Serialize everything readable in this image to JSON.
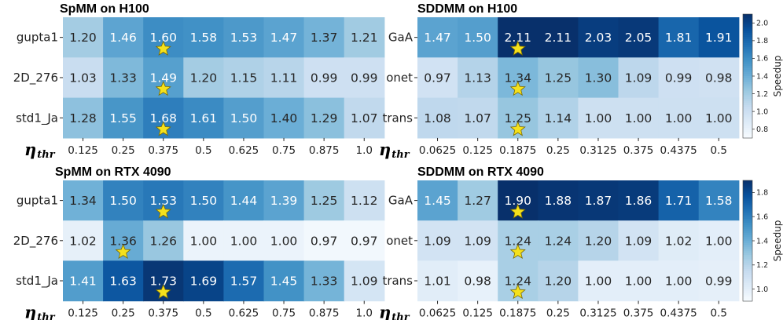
{
  "colors": {
    "low": "#f7fbff",
    "high": "#08306b",
    "star_fill": "#f5e11c",
    "star_stroke": "#7a6a00"
  },
  "chart_data": [
    {
      "type": "heatmap",
      "title": "SpMM on H100",
      "xlabel_main": "η",
      "xlabel_sub": "thr",
      "rows": [
        "gupta1",
        "2D_276",
        "std1_Ja"
      ],
      "cols": [
        "0.125",
        "0.25",
        "0.375",
        "0.5",
        "0.625",
        "0.75",
        "0.875",
        "1.0"
      ],
      "values": [
        [
          1.2,
          1.46,
          1.6,
          1.58,
          1.53,
          1.47,
          1.37,
          1.21
        ],
        [
          1.03,
          1.33,
          1.49,
          1.2,
          1.15,
          1.11,
          0.99,
          0.99
        ],
        [
          1.28,
          1.55,
          1.68,
          1.61,
          1.5,
          1.4,
          1.29,
          1.07
        ]
      ],
      "stars": [
        [
          0,
          2
        ],
        [
          1,
          2
        ],
        [
          2,
          2
        ]
      ],
      "vmin": 0.7,
      "vmax": 2.1,
      "colorbar": null
    },
    {
      "type": "heatmap",
      "title": "SDDMM on H100",
      "xlabel_main": "η",
      "xlabel_sub": "thr",
      "rows": [
        "GaA",
        "onet",
        "trans"
      ],
      "cols": [
        "0.0625",
        "0.125",
        "0.1875",
        "0.25",
        "0.3125",
        "0.375",
        "0.4375",
        "0.5"
      ],
      "values": [
        [
          1.47,
          1.5,
          2.11,
          2.11,
          2.03,
          2.05,
          1.81,
          1.91
        ],
        [
          0.97,
          1.13,
          1.34,
          1.25,
          1.3,
          1.09,
          0.99,
          0.98
        ],
        [
          1.08,
          1.07,
          1.25,
          1.14,
          1.0,
          1.0,
          1.0,
          1.0
        ]
      ],
      "stars": [
        [
          0,
          2
        ],
        [
          1,
          2
        ],
        [
          2,
          2
        ]
      ],
      "vmin": 0.7,
      "vmax": 2.1,
      "colorbar": {
        "label": "Speedup",
        "ticks": [
          "0.8",
          "1.0",
          "1.2",
          "1.4",
          "1.6",
          "1.8",
          "2.0"
        ],
        "tick_values": [
          0.8,
          1.0,
          1.2,
          1.4,
          1.6,
          1.8,
          2.0
        ]
      }
    },
    {
      "type": "heatmap",
      "title": "SpMM on RTX 4090",
      "xlabel_main": "η",
      "xlabel_sub": "thr",
      "rows": [
        "gupta1",
        "2D_276",
        "std1_Ja"
      ],
      "cols": [
        "0.125",
        "0.25",
        "0.375",
        "0.5",
        "0.625",
        "0.75",
        "0.875",
        "1.0"
      ],
      "values": [
        [
          1.34,
          1.5,
          1.53,
          1.5,
          1.44,
          1.39,
          1.25,
          1.12
        ],
        [
          1.02,
          1.36,
          1.26,
          1.0,
          1.0,
          1.0,
          0.97,
          0.97
        ],
        [
          1.41,
          1.63,
          1.73,
          1.69,
          1.57,
          1.45,
          1.33,
          1.09
        ]
      ],
      "stars": [
        [
          0,
          2
        ],
        [
          1,
          1
        ],
        [
          2,
          2
        ]
      ],
      "vmin": 0.95,
      "vmax": 1.75,
      "colorbar": null
    },
    {
      "type": "heatmap",
      "title": "SDDMM on RTX 4090",
      "xlabel_main": "η",
      "xlabel_sub": "thr",
      "rows": [
        "GaA",
        "onet",
        "trans"
      ],
      "cols": [
        "0.0625",
        "0.125",
        "0.1875",
        "0.25",
        "0.3125",
        "0.375",
        "0.4375",
        "0.5"
      ],
      "values": [
        [
          1.45,
          1.27,
          1.9,
          1.88,
          1.87,
          1.86,
          1.71,
          1.58
        ],
        [
          1.09,
          1.09,
          1.24,
          1.24,
          1.2,
          1.09,
          1.02,
          1.0
        ],
        [
          1.01,
          0.98,
          1.24,
          1.2,
          1.0,
          1.0,
          1.0,
          0.99
        ]
      ],
      "stars": [
        [
          0,
          2
        ],
        [
          1,
          2
        ],
        [
          2,
          2
        ]
      ],
      "vmin": 0.9,
      "vmax": 1.9,
      "colorbar": {
        "label": "Speedup",
        "ticks": [
          "1.0",
          "1.2",
          "1.4",
          "1.6",
          "1.8"
        ],
        "tick_values": [
          1.0,
          1.2,
          1.4,
          1.6,
          1.8
        ]
      }
    }
  ]
}
